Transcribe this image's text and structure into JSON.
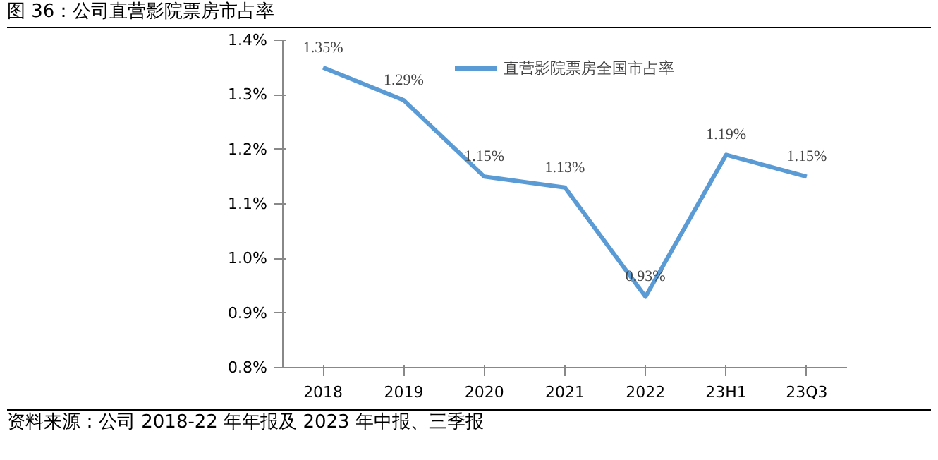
{
  "chart_data": {
    "type": "line",
    "title": "图 36：公司直营影院票房市占率",
    "categories": [
      "2018",
      "2019",
      "2020",
      "2021",
      "2022",
      "23H1",
      "23Q3"
    ],
    "series": [
      {
        "name": "直营影院票房全国市占率",
        "color": "#5b9bd5",
        "values": [
          1.35,
          1.29,
          1.15,
          1.13,
          0.93,
          1.19,
          1.15
        ],
        "value_labels": [
          "1.35%",
          "1.29%",
          "1.15%",
          "1.13%",
          "0.93%",
          "1.19%",
          "1.15%"
        ]
      }
    ],
    "ylim": [
      0.8,
      1.4
    ],
    "yticks": [
      {
        "value": 0.8,
        "label": "0.8%"
      },
      {
        "value": 0.9,
        "label": "0.9%"
      },
      {
        "value": 1.0,
        "label": "1.0%"
      },
      {
        "value": 1.1,
        "label": "1.1%"
      },
      {
        "value": 1.2,
        "label": "1.2%"
      },
      {
        "value": 1.3,
        "label": "1.3%"
      },
      {
        "value": 1.4,
        "label": "1.4%"
      }
    ],
    "grid": false,
    "legend": "top",
    "marker": "none",
    "line_style": "solid",
    "annotations": [
      "资料来源：公司 2018-22 年年报及 2023 年中报、三季报"
    ]
  }
}
